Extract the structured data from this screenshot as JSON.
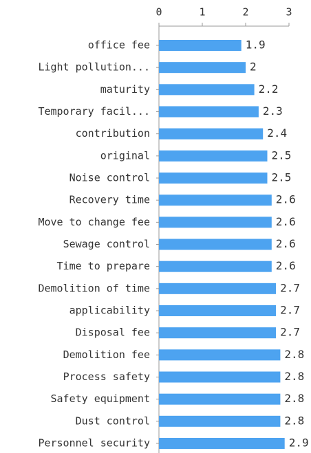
{
  "chart_data": {
    "type": "bar",
    "orientation": "horizontal",
    "categories": [
      "office fee",
      "Light pollution...",
      "maturity",
      "Temporary facil...",
      "contribution",
      "original",
      "Noise control",
      "Recovery time",
      "Move to change fee",
      "Sewage control",
      "Time to prepare",
      "Demolition of time",
      "applicability",
      "Disposal fee",
      "Demolition fee",
      "Process safety",
      "Safety equipment",
      "Dust control",
      "Personnel security"
    ],
    "values": [
      1.9,
      2,
      2.2,
      2.3,
      2.4,
      2.5,
      2.5,
      2.6,
      2.6,
      2.6,
      2.6,
      2.7,
      2.7,
      2.7,
      2.8,
      2.8,
      2.8,
      2.8,
      2.9
    ],
    "color": "#4da3f0",
    "xlim": [
      0,
      3
    ],
    "xticks": [
      0,
      1,
      2,
      3
    ],
    "grid": false
  }
}
